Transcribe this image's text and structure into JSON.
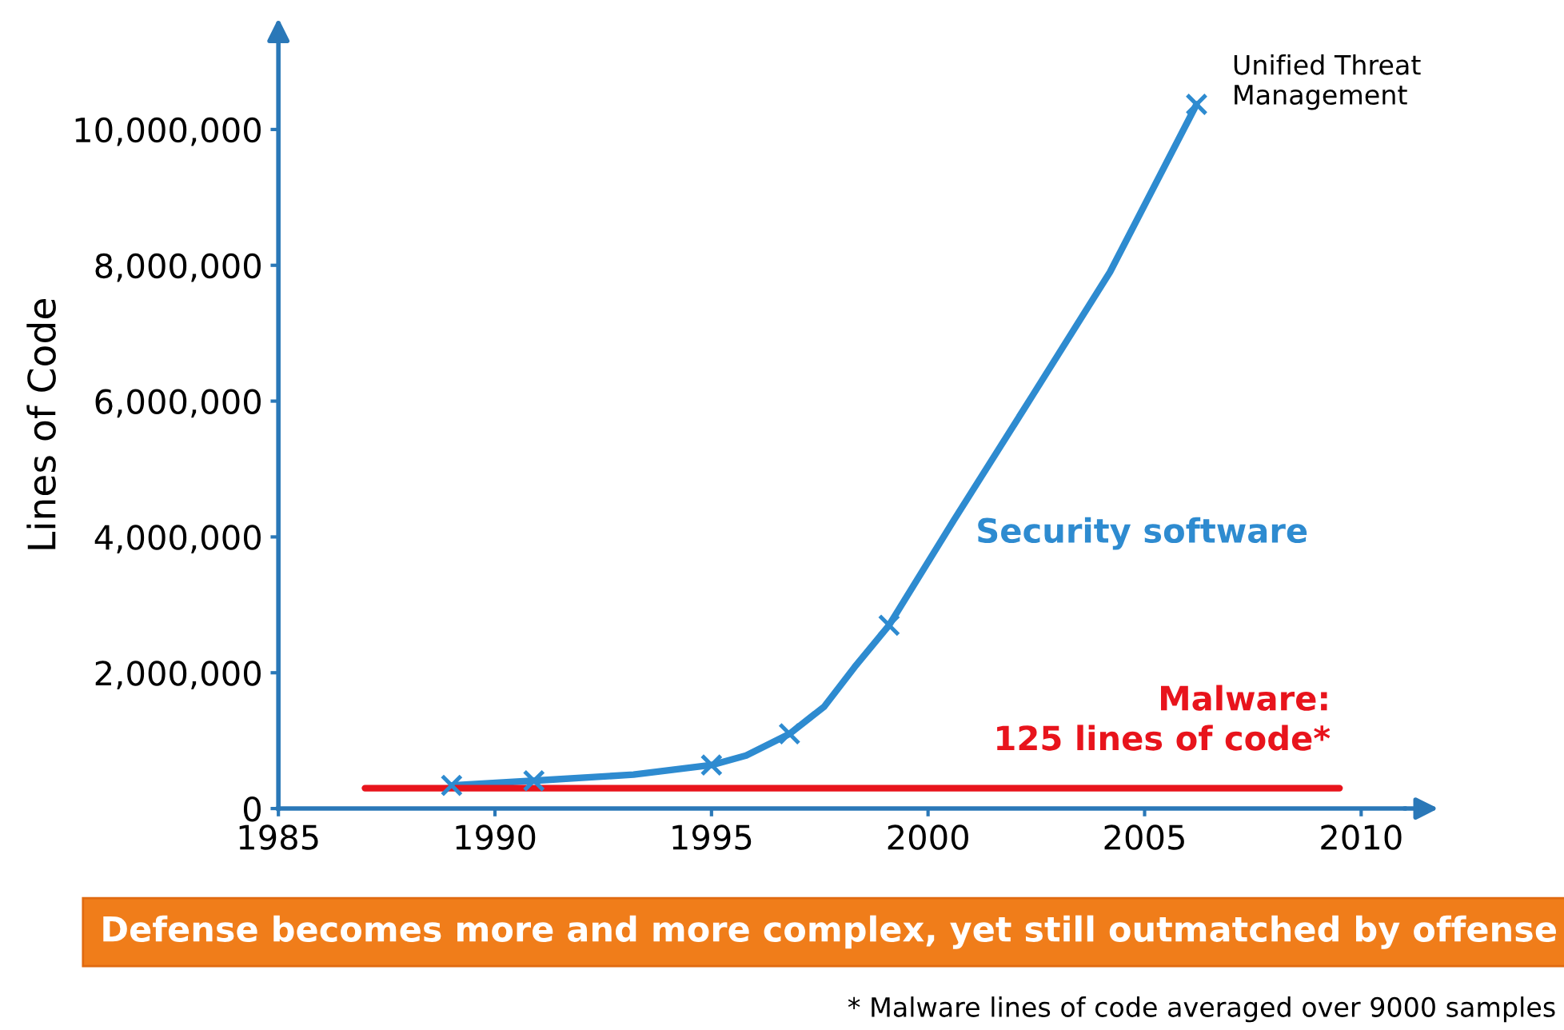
{
  "chart_data": {
    "type": "line",
    "ylabel": "Lines of Code",
    "xlim": [
      1985,
      2011
    ],
    "ylim": [
      0,
      11300000
    ],
    "xticks": [
      1985,
      1990,
      1995,
      2000,
      2005,
      2010
    ],
    "yticks": [
      {
        "value": 0,
        "label": "0"
      },
      {
        "value": 2000000,
        "label": "2,000,000"
      },
      {
        "value": 4000000,
        "label": "4,000,000"
      },
      {
        "value": 6000000,
        "label": "6,000,000"
      },
      {
        "value": 8000000,
        "label": "8,000,000"
      },
      {
        "value": 10000000,
        "label": "10,000,000"
      }
    ],
    "grid": false,
    "legend": false,
    "series": [
      {
        "name": "Security software",
        "color": "#2e8bd0",
        "marker": "none",
        "x": [
          1989.0,
          1990.9,
          1993.2,
          1995.0,
          1995.8,
          1996.8,
          1997.6,
          1998.3,
          1999.1,
          2000.6,
          2002.4,
          2004.2,
          2006.2
        ],
        "values": [
          340000,
          410000,
          500000,
          640000,
          780000,
          1100000,
          1500000,
          2080000,
          2700000,
          4250000,
          6070000,
          7900000,
          10370000
        ]
      },
      {
        "color": "#2e8bd0",
        "type": "scatter",
        "marker": "cross",
        "x": [
          1989.0,
          1990.9,
          1995.0,
          1996.8,
          1999.1,
          2006.2
        ],
        "values": [
          340000,
          410000,
          640000,
          1100000,
          2700000,
          10370000
        ]
      },
      {
        "color": "#e8141c",
        "marker": "none",
        "x": [
          1987,
          2009.5
        ],
        "values": [
          300000,
          300000
        ]
      }
    ],
    "annotations": [
      {
        "text": "Unified Threat\nManagement",
        "x": 2006.2,
        "y": 10370000
      },
      {
        "text": "Malware:\n125 lines of code*",
        "x": 2009.5,
        "y": 300000
      },
      "Defense becomes more and more complex, yet still outmatched by offense",
      "* Malware lines of code averaged over 9000 samples"
    ]
  }
}
